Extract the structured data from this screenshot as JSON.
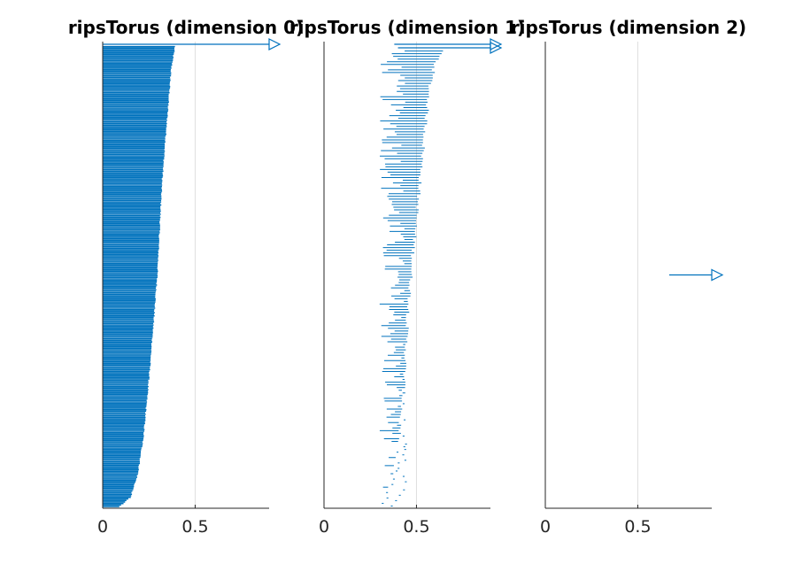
{
  "figure": {
    "colors": {
      "bars": "#0072bd",
      "axis": "#262626",
      "grid": "#dedede",
      "title": "#000000",
      "background": "#ffffff"
    }
  },
  "chart_data": [
    {
      "type": "barcode",
      "title": "ripsTorus (dimension 0)",
      "xlabel": "",
      "ylabel": "",
      "xlim": [
        0,
        0.9
      ],
      "xticks": [
        0,
        0.5
      ],
      "xtick_labels": [
        "0",
        "0.5"
      ],
      "grid": "x-major",
      "infinite_intervals": [
        {
          "birth": 0,
          "arrow": true
        }
      ],
      "n_intervals": 300,
      "death_profile": [
        {
          "rank_fraction": 0.0,
          "death": 0.39
        },
        {
          "rank_fraction": 0.05,
          "death": 0.37
        },
        {
          "rank_fraction": 0.15,
          "death": 0.35
        },
        {
          "rank_fraction": 0.3,
          "death": 0.32
        },
        {
          "rank_fraction": 0.5,
          "death": 0.295
        },
        {
          "rank_fraction": 0.7,
          "death": 0.255
        },
        {
          "rank_fraction": 0.85,
          "death": 0.22
        },
        {
          "rank_fraction": 0.93,
          "death": 0.19
        },
        {
          "rank_fraction": 0.98,
          "death": 0.15
        },
        {
          "rank_fraction": 1.0,
          "death": 0.09
        }
      ]
    },
    {
      "type": "barcode",
      "title": "ripsTorus (dimension 1)",
      "xlabel": "",
      "ylabel": "",
      "xlim": [
        0,
        0.9
      ],
      "xticks": [
        0,
        0.5
      ],
      "xtick_labels": [
        "0",
        "0.5"
      ],
      "grid": "x-major",
      "infinite_intervals": [
        {
          "birth": 0.38,
          "arrow": true
        },
        {
          "birth": 0.4,
          "arrow": true
        }
      ],
      "n_intervals": 170,
      "death_profile": [
        {
          "rank_fraction": 0.0,
          "death": 0.64
        },
        {
          "rank_fraction": 0.03,
          "death": 0.6
        },
        {
          "rank_fraction": 0.08,
          "death": 0.57
        },
        {
          "rank_fraction": 0.2,
          "death": 0.54
        },
        {
          "rank_fraction": 0.45,
          "death": 0.48
        },
        {
          "rank_fraction": 0.6,
          "death": 0.45
        },
        {
          "rank_fraction": 0.75,
          "death": 0.43
        },
        {
          "rank_fraction": 0.9,
          "death": 0.39
        },
        {
          "rank_fraction": 1.0,
          "death": 0.31
        }
      ],
      "birth_range": [
        0.3,
        0.44
      ]
    },
    {
      "type": "barcode",
      "title": "ripsTorus (dimension 2)",
      "xlabel": "",
      "ylabel": "",
      "xlim": [
        0,
        0.9
      ],
      "xticks": [
        0,
        0.5
      ],
      "xtick_labels": [
        "0",
        "0.5"
      ],
      "grid": "x-major",
      "infinite_intervals": [
        {
          "birth": 0.67,
          "arrow": true
        }
      ],
      "n_intervals": 0
    }
  ]
}
